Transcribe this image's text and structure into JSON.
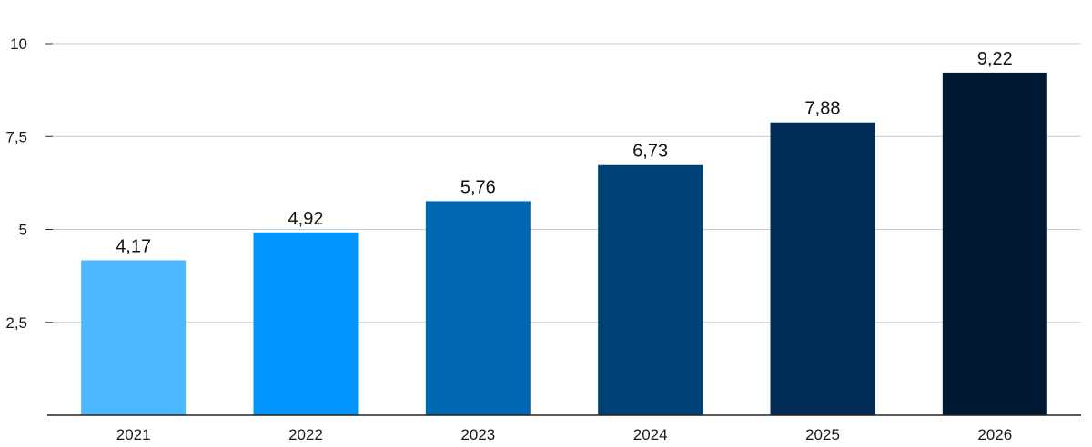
{
  "chart_data": {
    "type": "bar",
    "categories": [
      "2021",
      "2022",
      "2023",
      "2024",
      "2025",
      "2026"
    ],
    "values": [
      4.17,
      4.92,
      5.76,
      6.73,
      7.88,
      9.22
    ],
    "value_labels": [
      "4,17",
      "4,92",
      "5,76",
      "6,73",
      "7,88",
      "9,22"
    ],
    "title": "",
    "xlabel": "",
    "ylabel": "",
    "ylim": [
      0,
      10
    ],
    "yticks": [
      2.5,
      5,
      7.5,
      10
    ],
    "ytick_labels": [
      "2,5",
      "5",
      "7,5",
      "10"
    ],
    "grid": true,
    "legend": "none",
    "bar_colors": [
      "#4db8ff",
      "#0096ff",
      "#0068b0",
      "#004275",
      "#002c56",
      "#001932"
    ]
  }
}
